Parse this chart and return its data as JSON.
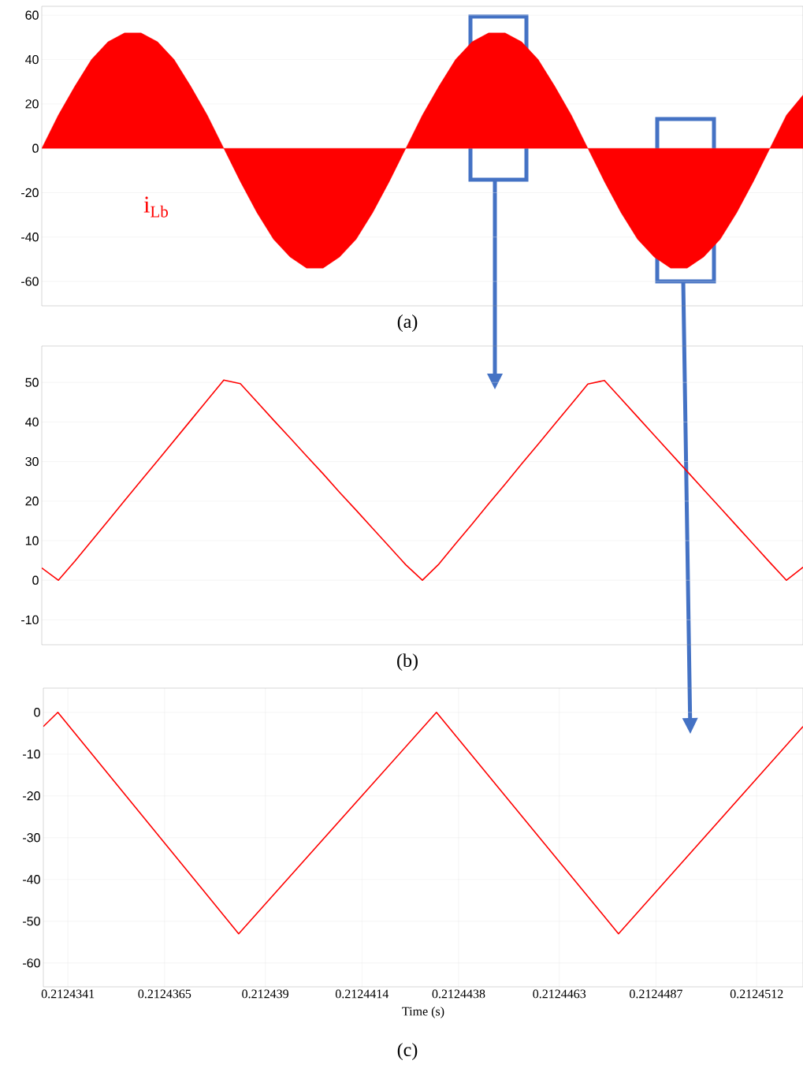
{
  "chart_data": [
    {
      "type": "area",
      "categories": [
        null,
        null,
        null,
        null,
        null,
        null,
        null,
        null,
        null,
        null,
        null,
        null,
        null,
        null,
        null,
        null,
        null,
        null,
        null,
        null,
        null,
        null,
        null,
        null,
        null,
        null,
        null,
        null,
        null,
        null,
        null,
        null,
        null,
        null,
        null,
        null,
        null,
        null,
        null,
        null,
        null,
        null,
        null,
        null,
        null,
        null,
        null
      ],
      "series": [
        {
          "name": "i$_{Lb}$",
          "color": "#ff0000",
          "values": [
            0,
            15,
            28,
            40,
            48,
            52,
            52,
            48,
            40,
            28,
            15,
            0,
            -15,
            -29,
            -41,
            -49,
            -54,
            -54,
            -49,
            -41,
            -29,
            -15,
            0,
            15,
            28,
            40,
            48,
            52,
            52,
            48,
            40,
            28,
            15,
            0,
            -15,
            -29,
            -41,
            -49,
            -54,
            -54,
            -49,
            -41,
            -29,
            -15,
            0,
            15,
            24
          ]
        }
      ],
      "ylim": [
        -71,
        64
      ],
      "yticks": [
        -60,
        -40,
        -20,
        0,
        20,
        40,
        60
      ],
      "grid": "y",
      "tick_labels": "y",
      "annotations": [
        "(a)"
      ]
    },
    {
      "type": "line",
      "categories": [
        null,
        null,
        null,
        null,
        null,
        null,
        null,
        null,
        null,
        null,
        null,
        null,
        null,
        null,
        null,
        null,
        null,
        null,
        null,
        null,
        null,
        null,
        null,
        null,
        null,
        null,
        null,
        null,
        null,
        null,
        null,
        null,
        null,
        null,
        null,
        null,
        null,
        null,
        null,
        null,
        null,
        null,
        null,
        null,
        null,
        null,
        null
      ],
      "values": [
        3.1,
        0,
        4.8,
        9.9,
        15,
        20.1,
        25.2,
        30.2,
        35.3,
        40.4,
        45.5,
        50.6,
        49.7,
        45.1,
        40.5,
        36,
        31.4,
        26.9,
        22.2,
        17.7,
        13.1,
        8.5,
        3.9,
        0,
        4.1,
        9.2,
        14.2,
        19.3,
        24.3,
        29.4,
        34.4,
        39.5,
        44.5,
        49.6,
        50.5,
        45.9,
        41.3,
        36.7,
        32.1,
        27.5,
        22.9,
        18.3,
        13.7,
        9.1,
        4.5,
        0,
        3.3
      ],
      "color": "#ff0000",
      "ylim": [
        -16.3,
        59.2
      ],
      "yticks": [
        -10,
        0,
        10,
        20,
        30,
        40,
        50
      ],
      "grid": "y",
      "tick_labels": "y",
      "annotations": [
        "(b)"
      ]
    },
    {
      "type": "line",
      "x": [
        0.21243349,
        0.21243385,
        0.21243834,
        0.21244325,
        0.21244777,
        0.21245235
      ],
      "values": [
        -3.4,
        0,
        -53,
        0,
        -53,
        -3.4
      ],
      "color": "#ff0000",
      "xlim": [
        0.21243349,
        0.21245235
      ],
      "xticks": [
        0.2124341,
        0.2124365,
        0.212439,
        0.2124414,
        0.2124438,
        0.2124463,
        0.2124487,
        0.2124512
      ],
      "ylim": [
        -65.7,
        5.8
      ],
      "yticks": [
        -60,
        -50,
        -40,
        -30,
        -20,
        -10,
        0
      ],
      "grid": true,
      "xlabel": "Time (s)",
      "annotations": [
        "(c)"
      ]
    }
  ]
}
